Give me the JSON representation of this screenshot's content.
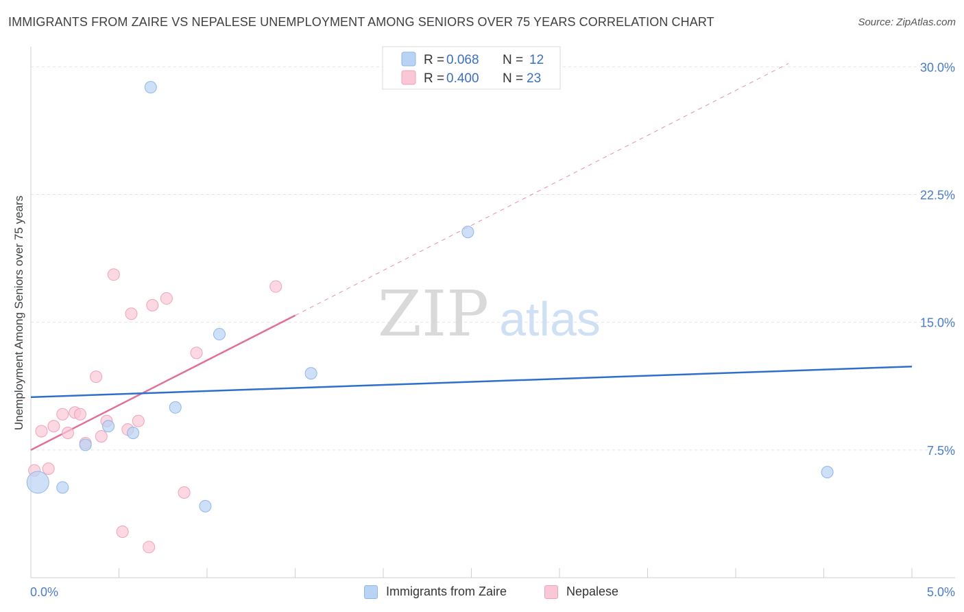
{
  "title": "IMMIGRANTS FROM ZAIRE VS NEPALESE UNEMPLOYMENT AMONG SENIORS OVER 75 YEARS CORRELATION CHART",
  "source": "Source: ZipAtlas.com",
  "watermark": {
    "zip": "ZIP",
    "atlas": "atlas"
  },
  "colors": {
    "blue_fill": "#b9d3f5",
    "blue_stroke": "#8fb5e8",
    "blue_line": "#2e6fcc",
    "pink_fill": "#f9c7d6",
    "pink_stroke": "#f0a2b9",
    "pink_line": "#e0709a",
    "axis_text": "#4a7bc8"
  },
  "legend": [
    {
      "r_label": "R =",
      "r_value": "0.068",
      "n_label": "N =",
      "n_value": "12"
    },
    {
      "r_label": "R =",
      "r_value": "0.400",
      "n_label": "N =",
      "n_value": "23"
    }
  ],
  "bottom_legend": [
    "Immigrants from Zaire",
    "Nepalese"
  ],
  "chart_data": {
    "type": "scatter",
    "title": "IMMIGRANTS FROM ZAIRE VS NEPALESE UNEMPLOYMENT AMONG SENIORS OVER 75 YEARS CORRELATION CHART",
    "xlabel": "",
    "ylabel": "Unemployment Among Seniors over 75 years",
    "xlim": [
      0,
      5.0
    ],
    "ylim": [
      0,
      30.7
    ],
    "x_tick_labels": [
      "0.0%",
      "5.0%"
    ],
    "y_ticks": [
      7.5,
      15.0,
      22.5,
      30.0
    ],
    "y_tick_labels": [
      "7.5%",
      "15.0%",
      "22.5%",
      "30.0%"
    ],
    "grid": true,
    "series": [
      {
        "name": "Immigrants from Zaire",
        "points": [
          {
            "x": 0.04,
            "y": 5.6,
            "large": true
          },
          {
            "x": 0.18,
            "y": 5.3
          },
          {
            "x": 0.31,
            "y": 7.8
          },
          {
            "x": 0.44,
            "y": 8.9
          },
          {
            "x": 0.58,
            "y": 8.5
          },
          {
            "x": 0.68,
            "y": 28.8
          },
          {
            "x": 0.82,
            "y": 10.0
          },
          {
            "x": 0.99,
            "y": 4.2
          },
          {
            "x": 1.07,
            "y": 14.3
          },
          {
            "x": 1.59,
            "y": 12.0
          },
          {
            "x": 2.48,
            "y": 20.3
          },
          {
            "x": 4.52,
            "y": 6.2
          }
        ],
        "trend": {
          "x": [
            0.0,
            5.0
          ],
          "y": [
            10.6,
            12.4
          ]
        }
      },
      {
        "name": "Nepalese",
        "points": [
          {
            "x": 0.02,
            "y": 6.3
          },
          {
            "x": 0.06,
            "y": 8.6
          },
          {
            "x": 0.1,
            "y": 6.4
          },
          {
            "x": 0.13,
            "y": 8.9
          },
          {
            "x": 0.18,
            "y": 9.6
          },
          {
            "x": 0.21,
            "y": 8.5
          },
          {
            "x": 0.25,
            "y": 9.7
          },
          {
            "x": 0.28,
            "y": 9.6
          },
          {
            "x": 0.31,
            "y": 7.9
          },
          {
            "x": 0.37,
            "y": 11.8
          },
          {
            "x": 0.4,
            "y": 8.3
          },
          {
            "x": 0.43,
            "y": 9.2
          },
          {
            "x": 0.47,
            "y": 17.8
          },
          {
            "x": 0.52,
            "y": 2.7
          },
          {
            "x": 0.55,
            "y": 8.7
          },
          {
            "x": 0.57,
            "y": 15.5
          },
          {
            "x": 0.61,
            "y": 9.2
          },
          {
            "x": 0.67,
            "y": 1.8
          },
          {
            "x": 0.69,
            "y": 16.0
          },
          {
            "x": 0.77,
            "y": 16.4
          },
          {
            "x": 0.87,
            "y": 5.0
          },
          {
            "x": 0.94,
            "y": 13.2
          },
          {
            "x": 1.39,
            "y": 17.1
          }
        ],
        "trend": {
          "x": [
            0.0,
            1.5
          ],
          "y": [
            7.5,
            15.4
          ]
        },
        "trend_dashed": {
          "x": [
            1.5,
            4.3
          ],
          "y": [
            15.4,
            30.2
          ]
        }
      }
    ]
  }
}
